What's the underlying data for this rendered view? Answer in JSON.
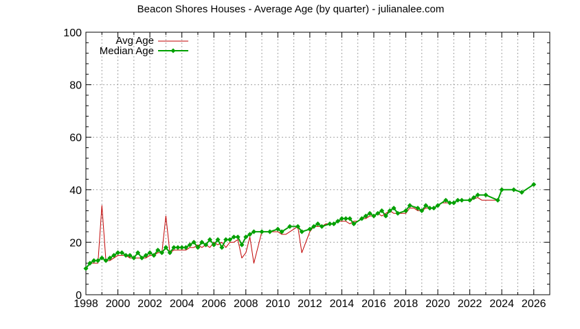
{
  "chart_data": {
    "type": "line",
    "title": "Beacon Shores Houses - Average Age (by quarter) - julianalee.com",
    "xlabel": "",
    "ylabel": "",
    "xlim": [
      1998,
      2027
    ],
    "ylim": [
      0,
      100
    ],
    "xticks": [
      1998,
      2000,
      2002,
      2004,
      2006,
      2008,
      2010,
      2012,
      2014,
      2016,
      2018,
      2020,
      2022,
      2024,
      2026
    ],
    "yticks": [
      0,
      20,
      40,
      60,
      80,
      100
    ],
    "grid": true,
    "legend_position": "top-left",
    "series": [
      {
        "name": "Avg Age",
        "color": "#c00000",
        "marker": "none",
        "points": [
          [
            1998.0,
            10
          ],
          [
            1998.25,
            12
          ],
          [
            1998.5,
            12
          ],
          [
            1998.75,
            12
          ],
          [
            1999.0,
            34
          ],
          [
            1999.25,
            13
          ],
          [
            1999.5,
            13
          ],
          [
            1999.75,
            14
          ],
          [
            2000.0,
            15
          ],
          [
            2000.25,
            15
          ],
          [
            2000.5,
            15
          ],
          [
            2000.75,
            14
          ],
          [
            2001.0,
            14
          ],
          [
            2001.25,
            14
          ],
          [
            2001.5,
            14
          ],
          [
            2001.75,
            14
          ],
          [
            2002.0,
            15
          ],
          [
            2002.25,
            15
          ],
          [
            2002.5,
            16
          ],
          [
            2002.75,
            16
          ],
          [
            2003.0,
            30
          ],
          [
            2003.25,
            16
          ],
          [
            2003.5,
            17
          ],
          [
            2003.75,
            17
          ],
          [
            2004.0,
            17
          ],
          [
            2004.25,
            17
          ],
          [
            2004.5,
            18
          ],
          [
            2004.75,
            18
          ],
          [
            2005.0,
            19
          ],
          [
            2005.25,
            18
          ],
          [
            2005.5,
            19
          ],
          [
            2005.75,
            18
          ],
          [
            2006.0,
            20
          ],
          [
            2006.25,
            19
          ],
          [
            2006.5,
            20
          ],
          [
            2006.75,
            18
          ],
          [
            2007.0,
            20
          ],
          [
            2007.25,
            20
          ],
          [
            2007.5,
            21
          ],
          [
            2007.75,
            14
          ],
          [
            2008.0,
            16
          ],
          [
            2008.25,
            22
          ],
          [
            2008.5,
            12
          ],
          [
            2008.75,
            18
          ],
          [
            2009.0,
            24
          ],
          [
            2009.25,
            24
          ],
          [
            2009.5,
            24
          ],
          [
            2009.75,
            24
          ],
          [
            2010.0,
            24
          ],
          [
            2010.25,
            23
          ],
          [
            2010.5,
            23
          ],
          [
            2010.75,
            24
          ],
          [
            2011.0,
            25
          ],
          [
            2011.25,
            26
          ],
          [
            2011.5,
            16
          ],
          [
            2011.75,
            20
          ],
          [
            2012.0,
            24
          ],
          [
            2012.25,
            26
          ],
          [
            2012.5,
            26
          ],
          [
            2012.75,
            26
          ],
          [
            2013.0,
            27
          ],
          [
            2013.25,
            27
          ],
          [
            2013.5,
            27
          ],
          [
            2013.75,
            28
          ],
          [
            2014.0,
            28
          ],
          [
            2014.25,
            28
          ],
          [
            2014.5,
            27
          ],
          [
            2014.75,
            28
          ],
          [
            2015.0,
            28
          ],
          [
            2015.25,
            29
          ],
          [
            2015.5,
            29
          ],
          [
            2015.75,
            30
          ],
          [
            2016.0,
            30
          ],
          [
            2016.25,
            31
          ],
          [
            2016.5,
            30
          ],
          [
            2016.75,
            31
          ],
          [
            2017.0,
            32
          ],
          [
            2017.25,
            31
          ],
          [
            2017.5,
            31
          ],
          [
            2017.75,
            31
          ],
          [
            2018.0,
            31
          ],
          [
            2018.25,
            33
          ],
          [
            2018.5,
            33
          ],
          [
            2018.75,
            32
          ],
          [
            2019.0,
            32
          ],
          [
            2019.25,
            33
          ],
          [
            2019.5,
            33
          ],
          [
            2019.75,
            33
          ],
          [
            2020.0,
            34
          ],
          [
            2020.25,
            35
          ],
          [
            2020.5,
            35
          ],
          [
            2020.75,
            35
          ],
          [
            2021.0,
            35
          ],
          [
            2021.25,
            36
          ],
          [
            2021.5,
            36
          ],
          [
            2021.75,
            36
          ],
          [
            2022.0,
            36
          ],
          [
            2022.5,
            37
          ],
          [
            2022.75,
            36
          ],
          [
            2023.0,
            36
          ],
          [
            2023.75,
            36
          ],
          [
            2024.0,
            40
          ],
          [
            2024.75,
            40
          ],
          [
            2025.25,
            39
          ],
          [
            2026.0,
            42
          ]
        ]
      },
      {
        "name": "Median Age",
        "color": "#00a000",
        "marker": "diamond",
        "points": [
          [
            1998.0,
            10
          ],
          [
            1998.25,
            12
          ],
          [
            1998.5,
            13
          ],
          [
            1998.75,
            13
          ],
          [
            1999.0,
            14
          ],
          [
            1999.25,
            13
          ],
          [
            1999.5,
            14
          ],
          [
            1999.75,
            15
          ],
          [
            2000.0,
            16
          ],
          [
            2000.25,
            16
          ],
          [
            2000.5,
            15
          ],
          [
            2000.75,
            15
          ],
          [
            2001.0,
            14
          ],
          [
            2001.25,
            16
          ],
          [
            2001.5,
            14
          ],
          [
            2001.75,
            15
          ],
          [
            2002.0,
            16
          ],
          [
            2002.25,
            15
          ],
          [
            2002.5,
            17
          ],
          [
            2002.75,
            16
          ],
          [
            2003.0,
            18
          ],
          [
            2003.25,
            16
          ],
          [
            2003.5,
            18
          ],
          [
            2003.75,
            18
          ],
          [
            2004.0,
            18
          ],
          [
            2004.25,
            18
          ],
          [
            2004.5,
            19
          ],
          [
            2004.75,
            20
          ],
          [
            2005.0,
            18
          ],
          [
            2005.25,
            20
          ],
          [
            2005.5,
            19
          ],
          [
            2005.75,
            21
          ],
          [
            2006.0,
            19
          ],
          [
            2006.25,
            21
          ],
          [
            2006.5,
            18
          ],
          [
            2006.75,
            21
          ],
          [
            2007.0,
            21
          ],
          [
            2007.25,
            22
          ],
          [
            2007.5,
            22
          ],
          [
            2007.75,
            19
          ],
          [
            2008.0,
            22
          ],
          [
            2008.25,
            23
          ],
          [
            2008.5,
            24
          ],
          [
            2009.0,
            24
          ],
          [
            2009.5,
            24
          ],
          [
            2010.0,
            25
          ],
          [
            2010.25,
            24
          ],
          [
            2010.75,
            26
          ],
          [
            2011.25,
            26
          ],
          [
            2011.5,
            24
          ],
          [
            2012.0,
            25
          ],
          [
            2012.25,
            26
          ],
          [
            2012.5,
            27
          ],
          [
            2012.75,
            26
          ],
          [
            2013.25,
            27
          ],
          [
            2013.5,
            27
          ],
          [
            2013.75,
            28
          ],
          [
            2014.0,
            29
          ],
          [
            2014.25,
            29
          ],
          [
            2014.5,
            29
          ],
          [
            2014.75,
            27
          ],
          [
            2015.25,
            29
          ],
          [
            2015.5,
            30
          ],
          [
            2015.75,
            31
          ],
          [
            2016.0,
            30
          ],
          [
            2016.25,
            31
          ],
          [
            2016.5,
            32
          ],
          [
            2016.75,
            30
          ],
          [
            2017.0,
            32
          ],
          [
            2017.25,
            33
          ],
          [
            2017.5,
            31
          ],
          [
            2018.0,
            32
          ],
          [
            2018.25,
            34
          ],
          [
            2018.75,
            33
          ],
          [
            2019.0,
            32
          ],
          [
            2019.25,
            34
          ],
          [
            2019.5,
            33
          ],
          [
            2019.75,
            33
          ],
          [
            2020.0,
            34
          ],
          [
            2020.5,
            36
          ],
          [
            2020.75,
            35
          ],
          [
            2021.0,
            35
          ],
          [
            2021.25,
            36
          ],
          [
            2021.5,
            36
          ],
          [
            2022.0,
            36
          ],
          [
            2022.25,
            37
          ],
          [
            2022.5,
            38
          ],
          [
            2023.0,
            38
          ],
          [
            2023.75,
            36
          ],
          [
            2024.0,
            40
          ],
          [
            2024.75,
            40
          ],
          [
            2025.25,
            39
          ],
          [
            2026.0,
            42
          ]
        ]
      }
    ]
  }
}
